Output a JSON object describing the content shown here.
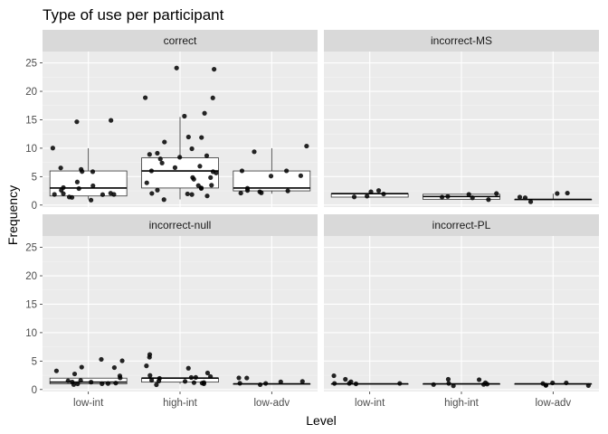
{
  "chart_data": {
    "type": "box",
    "title": "Type of use per participant",
    "xlabel": "Level",
    "ylabel": "Frequency",
    "categories": [
      "low-int",
      "high-int",
      "low-adv"
    ],
    "ylim": [
      0,
      27
    ],
    "yticks": [
      0,
      5,
      10,
      15,
      20,
      25
    ],
    "grid": true,
    "colors": {
      "panel": "#ebebeb",
      "strip": "#d9d9d9",
      "grid_major": "#ffffff",
      "grid_minor": "#f4f4f4",
      "box_fill": "#ffffff",
      "box_line": "#333333",
      "point": "#000000"
    },
    "facets": [
      {
        "name": "correct",
        "groups": [
          {
            "category": "low-int",
            "box": {
              "lower": 1,
              "q1": 1.6,
              "median": 3,
              "q3": 6,
              "upper": 10
            },
            "points": [
              1.5,
              1.5,
              2,
              2,
              2,
              2.2,
              3,
              3,
              3.3,
              4,
              6,
              6,
              6.4,
              6.7,
              10.2,
              14.8,
              15,
              1,
              1.7,
              2.5
            ]
          },
          {
            "category": "high-int",
            "box": {
              "lower": 1,
              "q1": 3,
              "median": 6,
              "q3": 8.3,
              "upper": 15.5
            },
            "points": [
              1,
              1.5,
              2,
              2,
              2.5,
              3,
              3,
              3.5,
              4,
              5,
              5,
              6,
              6,
              7,
              7.5,
              8,
              8.3,
              9,
              9,
              10,
              12,
              12,
              16,
              19,
              19,
              24,
              24,
              15.5,
              2.2,
              3.3,
              5.5,
              6.5,
              8.8,
              11,
              4.5
            ]
          },
          {
            "category": "low-adv",
            "box": {
              "lower": 2,
              "q1": 2.5,
              "median": 3,
              "q3": 6,
              "upper": 10
            },
            "points": [
              2,
              2.2,
              2.5,
              2.7,
              3,
              5,
              5.2,
              6,
              6,
              9.3,
              10.3,
              2
            ]
          }
        ]
      },
      {
        "name": "incorrect-MS",
        "groups": [
          {
            "category": "low-int",
            "box": {
              "lower": 1.3,
              "q1": 1.4,
              "median": 2,
              "q3": 2,
              "upper": 2
            },
            "points": [
              1.3,
              1.6,
              2,
              2.2,
              2.4
            ]
          },
          {
            "category": "high-int",
            "box": {
              "lower": 1,
              "q1": 1,
              "median": 1.5,
              "q3": 1.9,
              "upper": 2
            },
            "points": [
              1,
              1.2,
              1.5,
              1.6,
              2,
              2
            ]
          },
          {
            "category": "low-adv",
            "box": {
              "lower": 1,
              "q1": 1,
              "median": 1,
              "q3": 1,
              "upper": 2
            },
            "points": [
              0.6,
              1.3,
              2,
              1.4,
              1.9
            ]
          }
        ]
      },
      {
        "name": "incorrect-null",
        "groups": [
          {
            "category": "low-int",
            "box": {
              "lower": 1,
              "q1": 1,
              "median": 1.3,
              "q3": 2,
              "upper": 2
            },
            "points": [
              0.8,
              1,
              1,
              1.2,
              1.5,
              2,
              2.5,
              2.7,
              3.2,
              3.8,
              4.1,
              5,
              5.3,
              1.3,
              1.6,
              1,
              1.2
            ]
          },
          {
            "category": "high-int",
            "box": {
              "lower": 1,
              "q1": 1.3,
              "median": 2,
              "q3": 2,
              "upper": 2
            },
            "points": [
              0.9,
              1,
              1.1,
              1.2,
              1.5,
              1.8,
              2,
              2,
              2,
              2.2,
              2.3,
              3,
              3.9,
              4.1,
              5.8,
              6,
              1.1,
              1.4
            ]
          },
          {
            "category": "low-adv",
            "box": {
              "lower": 1,
              "q1": 1,
              "median": 1,
              "q3": 1,
              "upper": 1
            },
            "points": [
              1,
              1,
              1.2,
              1.5,
              2,
              2.2,
              1.1
            ]
          }
        ]
      },
      {
        "name": "incorrect-PL",
        "groups": [
          {
            "category": "low-int",
            "box": {
              "lower": 1,
              "q1": 1,
              "median": 1,
              "q3": 1,
              "upper": 1
            },
            "points": [
              1,
              1,
              1,
              1.3,
              1.8,
              2.3,
              1
            ]
          },
          {
            "category": "high-int",
            "box": {
              "lower": 1,
              "q1": 1,
              "median": 1,
              "q3": 1,
              "upper": 1
            },
            "points": [
              0.8,
              1,
              1,
              1.2,
              1.6,
              1.9,
              1,
              1.1
            ]
          },
          {
            "category": "low-adv",
            "box": {
              "lower": 1,
              "q1": 1,
              "median": 1,
              "q3": 1,
              "upper": 1
            },
            "points": [
              0.7,
              0.7,
              1,
              1.1,
              1.2,
              0.9
            ]
          }
        ]
      }
    ]
  }
}
